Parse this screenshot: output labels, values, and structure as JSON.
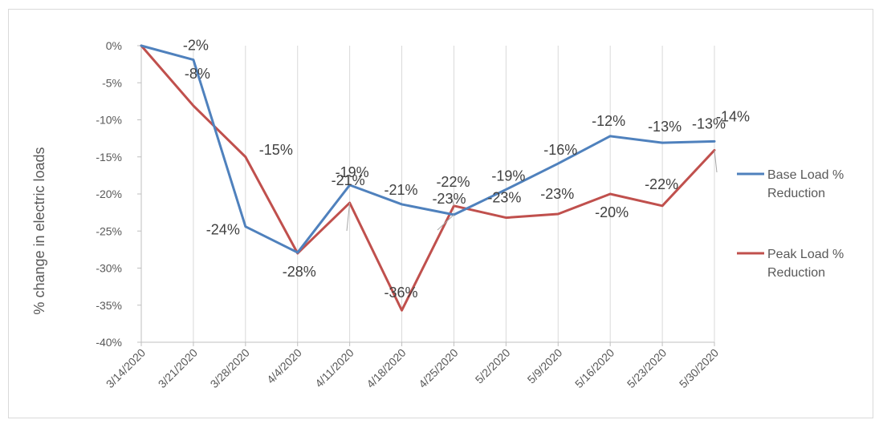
{
  "chart_data": {
    "type": "line",
    "title": "",
    "xlabel": "",
    "ylabel": "% change in electric loads",
    "x": [
      "3/14/2020",
      "3/21/2020",
      "3/28/2020",
      "4/4/2020",
      "4/11/2020",
      "4/18/2020",
      "4/25/2020",
      "5/2/2020",
      "5/9/2020",
      "5/16/2020",
      "5/23/2020",
      "5/30/2020"
    ],
    "ylim": [
      -40,
      0
    ],
    "yticks": [
      0,
      -5,
      -10,
      -15,
      -20,
      -25,
      -30,
      -35,
      -40
    ],
    "ytick_labels": [
      "0%",
      "-5%",
      "-10%",
      "-15%",
      "-20%",
      "-25%",
      "-30%",
      "-35%",
      "-40%"
    ],
    "grid": "vertical",
    "legend_position": "right",
    "series": [
      {
        "name": "Base Load % Reduction",
        "name_lines": [
          "Base Load %",
          "Reduction"
        ],
        "color": "#4f81bd",
        "values": [
          0,
          -1.9,
          -24.4,
          -27.9,
          -18.8,
          -21.4,
          -22.8,
          -19.4,
          -15.9,
          -12.2,
          -13.1,
          -12.9
        ],
        "labels": [
          "",
          "-2%",
          "-24%",
          "",
          "-19%",
          "-21%",
          "-23%",
          "-19%",
          "-16%",
          "-12%",
          "-13%",
          "-13%"
        ]
      },
      {
        "name": "Peak Load % Reduction",
        "name_lines": [
          "Peak Load %",
          "Reduction"
        ],
        "color": "#c0504d",
        "values": [
          0,
          -8.1,
          -15.0,
          -28.0,
          -21.2,
          -35.7,
          -21.6,
          -23.2,
          -22.7,
          -20.0,
          -21.6,
          -14.1
        ],
        "labels": [
          "",
          "-8%",
          "-15%",
          "-28%",
          "-21%",
          "-36%",
          "-22%",
          "-23%",
          "-23%",
          "-20%",
          "-22%",
          "-14%"
        ]
      }
    ]
  }
}
